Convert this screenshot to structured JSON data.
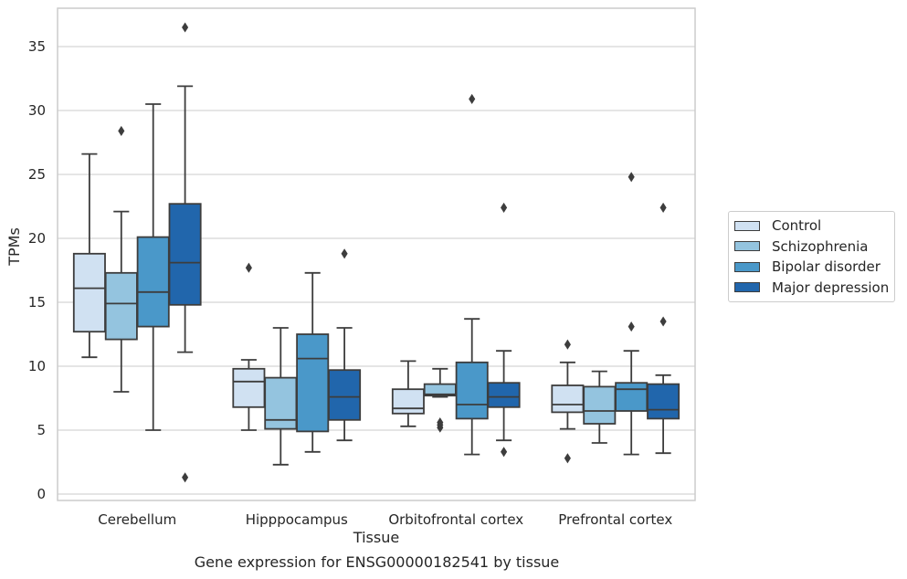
{
  "chart_data": {
    "type": "boxplot",
    "xlabel": "Tissue",
    "ylabel": "TPMs",
    "caption": "Gene expression for ENSG00000182541 by tissue",
    "ylim": [
      -0.5,
      38
    ],
    "yticks": [
      0,
      5,
      10,
      15,
      20,
      25,
      30,
      35
    ],
    "ytick_labels": [
      "0",
      "5",
      "10",
      "15",
      "20",
      "25",
      "30",
      "35"
    ],
    "grid": true,
    "legend_position": "right",
    "categories": [
      "Cerebellum",
      "Hipppocampus",
      "Orbitofrontal cortex",
      "Prefrontal cortex"
    ],
    "series": [
      {
        "name": "Control",
        "color": "#d0e1f2",
        "boxes": [
          {
            "whislo": 10.7,
            "q1": 12.7,
            "med": 16.1,
            "q3": 18.8,
            "whishi": 26.6,
            "fliers": []
          },
          {
            "whislo": 5.0,
            "q1": 6.8,
            "med": 8.8,
            "q3": 9.8,
            "whishi": 10.5,
            "fliers": [
              17.7
            ]
          },
          {
            "whislo": 5.3,
            "q1": 6.3,
            "med": 6.7,
            "q3": 8.2,
            "whishi": 10.4,
            "fliers": []
          },
          {
            "whislo": 5.1,
            "q1": 6.4,
            "med": 7.0,
            "q3": 8.5,
            "whishi": 10.3,
            "fliers": [
              2.8,
              11.7
            ]
          }
        ]
      },
      {
        "name": "Schizophrenia",
        "color": "#94c4df",
        "boxes": [
          {
            "whislo": 8.0,
            "q1": 12.1,
            "med": 14.9,
            "q3": 17.3,
            "whishi": 22.1,
            "fliers": [
              28.4
            ]
          },
          {
            "whislo": 2.3,
            "q1": 5.1,
            "med": 5.8,
            "q3": 9.1,
            "whishi": 13.0,
            "fliers": []
          },
          {
            "whislo": 7.6,
            "q1": 7.7,
            "med": 7.8,
            "q3": 8.6,
            "whishi": 9.8,
            "fliers": [
              5.2,
              5.4,
              5.6
            ]
          },
          {
            "whislo": 4.0,
            "q1": 5.5,
            "med": 6.5,
            "q3": 8.4,
            "whishi": 9.6,
            "fliers": []
          }
        ]
      },
      {
        "name": "Bipolar disorder",
        "color": "#4a98c9",
        "boxes": [
          {
            "whislo": 5.0,
            "q1": 13.1,
            "med": 15.8,
            "q3": 20.1,
            "whishi": 30.5,
            "fliers": []
          },
          {
            "whislo": 3.3,
            "q1": 4.9,
            "med": 10.6,
            "q3": 12.5,
            "whishi": 17.3,
            "fliers": []
          },
          {
            "whislo": 3.1,
            "q1": 5.9,
            "med": 7.0,
            "q3": 10.3,
            "whishi": 13.7,
            "fliers": [
              30.9
            ]
          },
          {
            "whislo": 3.1,
            "q1": 6.5,
            "med": 8.2,
            "q3": 8.7,
            "whishi": 11.2,
            "fliers": [
              13.1,
              24.8
            ]
          }
        ]
      },
      {
        "name": "Major depression",
        "color": "#2166ac",
        "boxes": [
          {
            "whislo": 11.1,
            "q1": 14.8,
            "med": 18.1,
            "q3": 22.7,
            "whishi": 31.9,
            "fliers": [
              1.3,
              36.5
            ]
          },
          {
            "whislo": 4.2,
            "q1": 5.8,
            "med": 7.6,
            "q3": 9.7,
            "whishi": 13.0,
            "fliers": [
              18.8
            ]
          },
          {
            "whislo": 4.2,
            "q1": 6.8,
            "med": 7.6,
            "q3": 8.7,
            "whishi": 11.2,
            "fliers": [
              3.3,
              22.4
            ]
          },
          {
            "whislo": 3.2,
            "q1": 5.9,
            "med": 6.6,
            "q3": 8.6,
            "whishi": 9.3,
            "fliers": [
              13.5,
              22.4
            ]
          }
        ]
      }
    ]
  }
}
